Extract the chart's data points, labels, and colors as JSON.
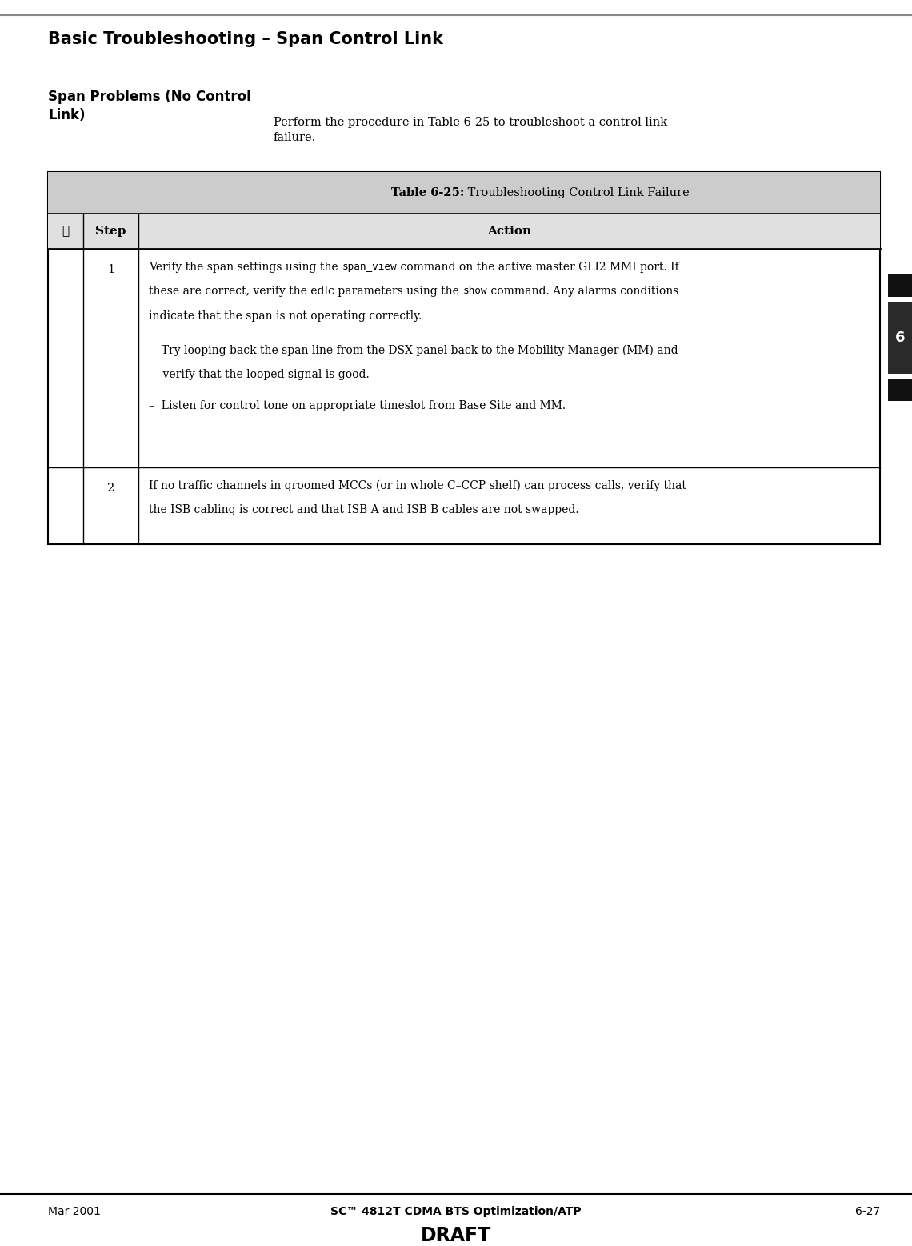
{
  "title": "Basic Troubleshooting – Span Control Link",
  "bg_color": "#ffffff",
  "section_heading": "Span Problems (No Control\nLink)",
  "intro_text": "Perform the procedure in Table 6-25 to troubleshoot a control link\nfailure.",
  "table_title_bold": "Table 6-25:",
  "table_title_normal": " Troubleshooting Control Link Failure",
  "col_header_check": "✓",
  "col_header_step": "Step",
  "col_header_action": "Action",
  "row1_step": "1",
  "row1_line1a": "Verify the span settings using the ",
  "row1_code1": "span_view",
  "row1_line1b": " command on the active master GLI2 MMI port. If",
  "row1_line2a": "these are correct, verify the edlc parameters using the ",
  "row1_code2": "show",
  "row1_line2b": " command. Any alarms conditions",
  "row1_line3": "indicate that the span is not operating correctly.",
  "row1_bullet1a": "–  Try looping back the span line from the DSX panel back to the Mobility Manager (MM) and",
  "row1_bullet1b": "    verify that the looped signal is good.",
  "row1_bullet2": "–  Listen for control tone on appropriate timeslot from Base Site and MM.",
  "row2_step": "2",
  "row2_line1": "If no traffic channels in groomed MCCs (or in whole C–CCP shelf) can process calls, verify that",
  "row2_line2": "the ISB cabling is correct and that ISB A and ISB B cables are not swapped.",
  "footer_left": "Mar 2001",
  "footer_center": "SC™ 4812T CDMA BTS Optimization/ATP",
  "footer_right": "6-27",
  "footer_draft": "DRAFT",
  "tab_number": "6",
  "top_rule_color": "#888888",
  "tab_bg_color": "#2a2a2a",
  "tab_sq_color": "#111111"
}
